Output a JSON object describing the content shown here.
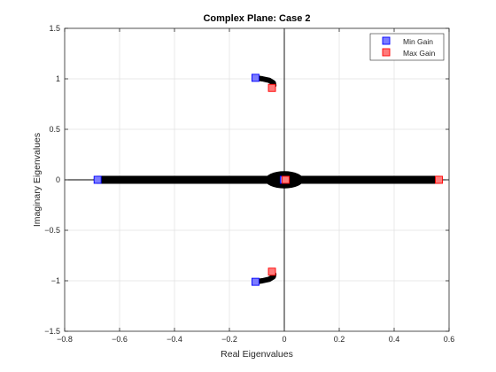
{
  "chart_data": {
    "type": "scatter",
    "title": "Complex Plane: Case 2",
    "xlabel": "Real Eigenvalues",
    "ylabel": "Imaginary Eigenvalues",
    "xlim": [
      -0.8,
      0.6
    ],
    "ylim": [
      -1.5,
      1.5
    ],
    "x_ticks": [
      -0.8,
      -0.6,
      -0.4,
      -0.2,
      0,
      0.2,
      0.4,
      0.6
    ],
    "x_tick_labels": [
      "−0.8",
      "−0.6",
      "−0.4",
      "−0.2",
      "0",
      "0.2",
      "0.4",
      "0.6"
    ],
    "y_ticks": [
      -1.5,
      -1,
      -0.5,
      0,
      0.5,
      1,
      1.5
    ],
    "y_tick_labels": [
      "−1.5",
      "−1",
      "−0.5",
      "0",
      "0.5",
      "1",
      "1.5"
    ],
    "grid": true,
    "legend_position": "top-right",
    "series": [
      {
        "name": "Min Gain",
        "marker": "square",
        "color": "#7b7bff",
        "points": [
          [
            -0.68,
            0
          ],
          [
            -0.105,
            1.01
          ],
          [
            -0.105,
            -1.01
          ],
          [
            -0.002,
            0
          ]
        ]
      },
      {
        "name": "Max Gain",
        "marker": "square",
        "color": "#ff7b7b",
        "points": [
          [
            0.563,
            0
          ],
          [
            -0.045,
            0.91
          ],
          [
            -0.045,
            -0.91
          ],
          [
            0.005,
            0
          ]
        ]
      }
    ],
    "root_locus": {
      "color": "#000000",
      "real_axis_segment": [
        -0.68,
        0.563
      ],
      "central_blob": {
        "x_radius": 0.07,
        "y_radius": 0.085
      },
      "upper_branch": [
        [
          -0.105,
          1.01
        ],
        [
          -0.08,
          1.0
        ],
        [
          -0.055,
          0.985
        ],
        [
          -0.04,
          0.96
        ],
        [
          -0.038,
          0.935
        ],
        [
          -0.045,
          0.91
        ]
      ],
      "lower_branch": [
        [
          -0.105,
          -1.01
        ],
        [
          -0.08,
          -1.0
        ],
        [
          -0.055,
          -0.985
        ],
        [
          -0.04,
          -0.96
        ],
        [
          -0.038,
          -0.935
        ],
        [
          -0.045,
          -0.91
        ]
      ]
    }
  }
}
